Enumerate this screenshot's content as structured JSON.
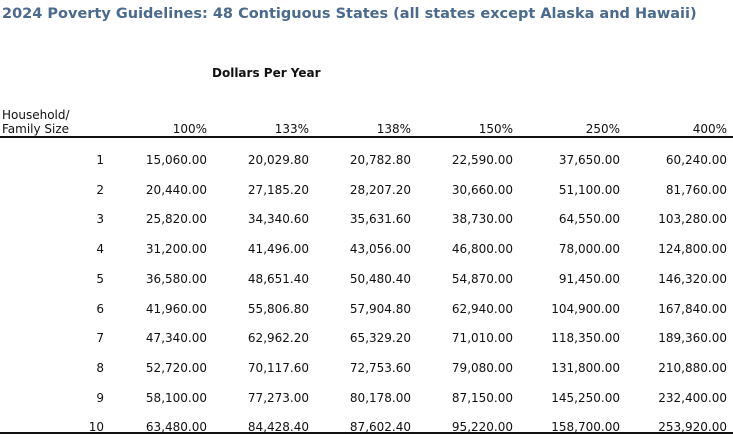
{
  "title": "2024 Poverty Guidelines: 48 Contiguous States (all states except Alaska and Hawaii)",
  "table": {
    "caption": "Dollars Per Year",
    "row_header": [
      "Household/",
      "Family Size"
    ],
    "columns": [
      "100%",
      "133%",
      "138%",
      "150%",
      "250%",
      "400%"
    ],
    "rows": [
      [
        "1",
        "15,060.00",
        "20,029.80",
        "20,782.80",
        "22,590.00",
        "37,650.00",
        "60,240.00"
      ],
      [
        "2",
        "20,440.00",
        "27,185.20",
        "28,207.20",
        "30,660.00",
        "51,100.00",
        "81,760.00"
      ],
      [
        "3",
        "25,820.00",
        "34,340.60",
        "35,631.60",
        "38,730.00",
        "64,550.00",
        "103,280.00"
      ],
      [
        "4",
        "31,200.00",
        "41,496.00",
        "43,056.00",
        "46,800.00",
        "78,000.00",
        "124,800.00"
      ],
      [
        "5",
        "36,580.00",
        "48,651.40",
        "50,480.40",
        "54,870.00",
        "91,450.00",
        "146,320.00"
      ],
      [
        "6",
        "41,960.00",
        "55,806.80",
        "57,904.80",
        "62,940.00",
        "104,900.00",
        "167,840.00"
      ],
      [
        "7",
        "47,340.00",
        "62,962.20",
        "65,329.20",
        "71,010.00",
        "118,350.00",
        "189,360.00"
      ],
      [
        "8",
        "52,720.00",
        "70,117.60",
        "72,753.60",
        "79,080.00",
        "131,800.00",
        "210,880.00"
      ],
      [
        "9",
        "58,100.00",
        "77,273.00",
        "80,178.00",
        "87,150.00",
        "145,250.00",
        "232,400.00"
      ],
      [
        "10",
        "63,480.00",
        "84,428.40",
        "87,602.40",
        "95,220.00",
        "158,700.00",
        "253,920.00"
      ]
    ]
  }
}
